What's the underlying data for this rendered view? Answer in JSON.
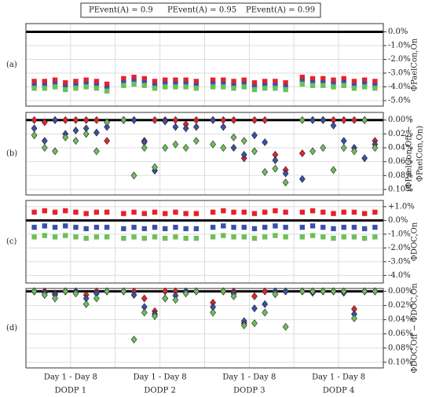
{
  "chart_data": [
    {
      "type": "scatter",
      "panel_label": "(a)",
      "marker": "square",
      "ylabel": [
        "ΦPaelCon,On"
      ],
      "ylim": [
        -5.4,
        0.6
      ],
      "invert": false,
      "yticks": [
        {
          "value": 0,
          "label": "0.0%"
        },
        {
          "value": -1,
          "label": "-1.0%"
        },
        {
          "value": -2,
          "label": "-2.0%"
        },
        {
          "value": -3,
          "label": "-3.0%"
        },
        {
          "value": -4,
          "label": "-4.0%"
        },
        {
          "value": -5,
          "label": "-5.0%"
        }
      ],
      "series": [
        {
          "name": "PEvent(A) = 0.9",
          "color": "#e8212a",
          "values": [
            -3.6,
            -3.6,
            -3.5,
            -3.7,
            -3.6,
            -3.5,
            -3.6,
            -3.8,
            -3.4,
            -3.3,
            -3.4,
            -3.6,
            -3.5,
            -3.5,
            -3.5,
            -3.6,
            -3.5,
            -3.5,
            -3.6,
            -3.5,
            -3.7,
            -3.6,
            -3.6,
            -3.7,
            -3.3,
            -3.4,
            -3.4,
            -3.5,
            -3.4,
            -3.6,
            -3.5,
            -3.6
          ]
        },
        {
          "name": "PEvent(A) = 0.95",
          "color": "#3a50a8",
          "values": [
            -3.9,
            -3.9,
            -3.8,
            -4.0,
            -3.9,
            -3.8,
            -3.9,
            -4.1,
            -3.7,
            -3.6,
            -3.7,
            -3.9,
            -3.8,
            -3.8,
            -3.8,
            -3.9,
            -3.8,
            -3.8,
            -3.9,
            -3.8,
            -4.0,
            -3.9,
            -3.9,
            -4.0,
            -3.6,
            -3.7,
            -3.7,
            -3.8,
            -3.7,
            -3.9,
            -3.8,
            -3.9
          ]
        },
        {
          "name": "PEvent(A) = 0.99",
          "color": "#6cbf5a",
          "values": [
            -4.1,
            -4.1,
            -4.0,
            -4.2,
            -4.1,
            -4.0,
            -4.1,
            -4.3,
            -3.9,
            -3.8,
            -3.9,
            -4.1,
            -4.0,
            -4.0,
            -4.0,
            -4.1,
            -4.0,
            -4.0,
            -4.1,
            -4.0,
            -4.2,
            -4.1,
            -4.1,
            -4.2,
            -3.8,
            -3.9,
            -3.9,
            -4.0,
            -3.9,
            -4.1,
            -4.0,
            -4.1
          ]
        }
      ]
    },
    {
      "type": "scatter",
      "panel_label": "(b)",
      "marker": "diamond",
      "ylabel": [
        "(ΦPaelCon,Off − ...",
        "ΦPaelCon,On)"
      ],
      "ylim": [
        -0.011,
        0.108
      ],
      "invert": true,
      "yticks": [
        {
          "value": 0,
          "label": "0.00%"
        },
        {
          "value": 0.02,
          "label": "0.02%"
        },
        {
          "value": 0.04,
          "label": "0.04%"
        },
        {
          "value": 0.06,
          "label": "0.06%"
        },
        {
          "value": 0.08,
          "label": "0.08%"
        },
        {
          "value": 0.1,
          "label": "0.10%"
        }
      ],
      "series": [
        {
          "color": "#e8212a",
          "values": [
            0,
            0.003,
            0,
            0,
            0,
            0,
            0,
            0.03,
            0,
            0,
            0.03,
            0,
            0,
            0,
            0.006,
            0,
            0,
            0,
            0,
            0.055,
            0,
            0,
            0.05,
            0.072,
            0.048,
            0,
            0,
            0,
            0,
            0,
            0,
            0.03
          ]
        },
        {
          "color": "#3a50a8",
          "values": [
            0.012,
            0.03,
            0,
            0.02,
            0.015,
            0.012,
            0.018,
            0.01,
            0,
            0,
            0.032,
            0.073,
            0.002,
            0.01,
            0.012,
            0.01,
            0,
            0.01,
            0.04,
            0.05,
            0.022,
            0.032,
            0.058,
            0.077,
            0.085,
            0,
            0,
            0.008,
            0.03,
            0.04,
            0.055,
            0.035
          ]
        },
        {
          "color": "#6cbf5a",
          "values": [
            0.022,
            0.04,
            0.045,
            0.025,
            0.03,
            0.02,
            0.045,
            0.003,
            0,
            0.08,
            0.04,
            0.068,
            0.04,
            0.035,
            0.04,
            0.03,
            0.035,
            0.04,
            0.025,
            0.03,
            0.045,
            0.075,
            0.07,
            0.09,
            0,
            0.045,
            0.04,
            0.072,
            0.04,
            0.045,
            0,
            0.04
          ]
        }
      ]
    },
    {
      "type": "scatter",
      "panel_label": "(c)",
      "marker": "square",
      "ylabel": [
        "ΦDOC,On"
      ],
      "ylim": [
        -4.55,
        1.45
      ],
      "invert": false,
      "yticks": [
        {
          "value": 1,
          "label": "+1.0%"
        },
        {
          "value": 0,
          "label": "0.0%"
        },
        {
          "value": -1,
          "label": "-1.0%"
        },
        {
          "value": -2,
          "label": "-2.0%"
        },
        {
          "value": -3,
          "label": "-3.0%"
        },
        {
          "value": -4,
          "label": "-4.0%"
        }
      ],
      "series": [
        {
          "color": "#e8212a",
          "values": [
            0.6,
            0.7,
            0.6,
            0.7,
            0.6,
            0.5,
            0.6,
            0.6,
            0.5,
            0.6,
            0.5,
            0.6,
            0.5,
            0.6,
            0.5,
            0.5,
            0.6,
            0.7,
            0.6,
            0.6,
            0.5,
            0.6,
            0.7,
            0.6,
            0.6,
            0.7,
            0.6,
            0.5,
            0.6,
            0.6,
            0.5,
            0.6
          ]
        },
        {
          "color": "#3a50a8",
          "values": [
            -0.5,
            -0.4,
            -0.5,
            -0.4,
            -0.5,
            -0.6,
            -0.5,
            -0.5,
            -0.6,
            -0.5,
            -0.6,
            -0.5,
            -0.6,
            -0.5,
            -0.6,
            -0.6,
            -0.5,
            -0.4,
            -0.5,
            -0.5,
            -0.6,
            -0.5,
            -0.4,
            -0.5,
            -0.5,
            -0.4,
            -0.5,
            -0.6,
            -0.5,
            -0.5,
            -0.6,
            -0.5
          ]
        },
        {
          "color": "#6cbf5a",
          "values": [
            -1.2,
            -1.1,
            -1.2,
            -1.1,
            -1.2,
            -1.3,
            -1.2,
            -1.2,
            -1.3,
            -1.2,
            -1.3,
            -1.2,
            -1.3,
            -1.2,
            -1.3,
            -1.3,
            -1.2,
            -1.1,
            -1.2,
            -1.2,
            -1.3,
            -1.2,
            -1.1,
            -1.2,
            -1.2,
            -1.1,
            -1.2,
            -1.3,
            -1.2,
            -1.2,
            -1.3,
            -1.2
          ]
        }
      ]
    },
    {
      "type": "scatter",
      "panel_label": "(d)",
      "marker": "diamond",
      "ylabel": [
        "ΦDOC,Off − ΦDOC,On"
      ],
      "ylim": [
        -0.004,
        0.108
      ],
      "invert": true,
      "yticks": [
        {
          "value": 0,
          "label": "0.00%"
        },
        {
          "value": 0.02,
          "label": "0.02%"
        },
        {
          "value": 0.04,
          "label": "0.04%"
        },
        {
          "value": 0.06,
          "label": "0.06%"
        },
        {
          "value": 0.08,
          "label": "0.08%"
        },
        {
          "value": 0.1,
          "label": "0.10%"
        }
      ],
      "group_labels": [
        "DODP 1",
        "DODP 2",
        "DODP 3",
        "DODP 4"
      ],
      "day_labels": [
        "Day 1 - Day 8",
        "Day 1 - Day 8",
        "Day 1 - Day 8",
        "Day 1 - Day 8"
      ],
      "series": [
        {
          "color": "#e8212a",
          "values": [
            0,
            0,
            0.003,
            0,
            0,
            0.005,
            0,
            0,
            0,
            0,
            0.01,
            0.028,
            0,
            0,
            0,
            0,
            0.016,
            0,
            0,
            0.045,
            0.007,
            0,
            0,
            0,
            0,
            0,
            0,
            0,
            0,
            0.025,
            0,
            0
          ]
        },
        {
          "color": "#3a50a8",
          "values": [
            0,
            0.002,
            0.005,
            0,
            0,
            0.01,
            0.003,
            0,
            0,
            0.005,
            0.022,
            0.032,
            0.01,
            0.006,
            0,
            0,
            0.022,
            0,
            0.003,
            0.042,
            0.024,
            0.018,
            0,
            0,
            0,
            0.002,
            0,
            0,
            0.002,
            0.032,
            0,
            0
          ]
        },
        {
          "color": "#6cbf5a",
          "values": [
            0,
            0.005,
            0.01,
            0,
            0.003,
            0.018,
            0.01,
            0,
            0,
            0.068,
            0.03,
            0.035,
            0.01,
            0.012,
            0.003,
            0,
            0.03,
            0,
            0.007,
            0.048,
            0.045,
            0.03,
            0.004,
            0.05,
            0,
            0,
            0,
            0,
            0,
            0.038,
            0,
            0
          ]
        }
      ]
    }
  ]
}
